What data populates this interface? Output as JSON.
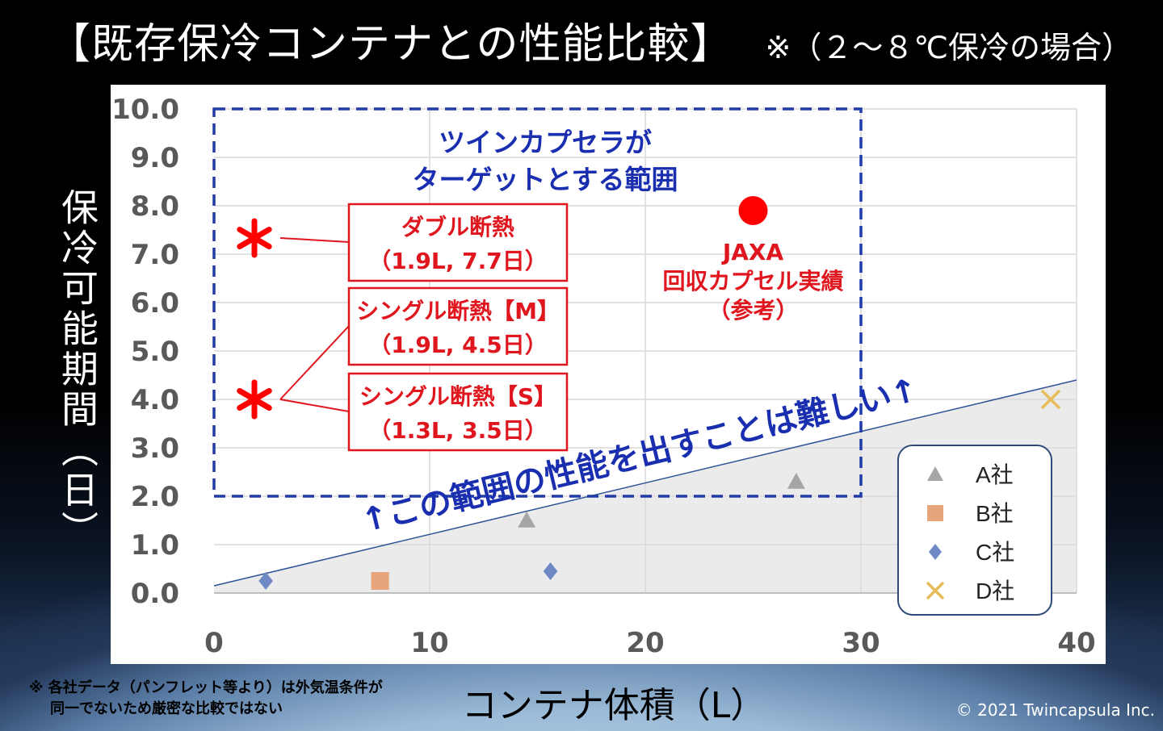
{
  "title": {
    "main": "【既存保冷コンテナとの性能比較】",
    "sub": "※（２～８℃保冷の場合）"
  },
  "ylabel": "保冷可能期間（日）",
  "xlabel": "コンテナ体積（L）",
  "footnote": {
    "line1": "※ 各社データ（パンフレット等より）は外気温条件が",
    "line2": "同一でないため厳密な比較ではない"
  },
  "copyright": "© 2021 Twincapsula Inc.",
  "chart_data": {
    "type": "scatter",
    "xlim": [
      0,
      40
    ],
    "ylim": [
      0,
      10
    ],
    "xticks": [
      "0",
      "10",
      "20",
      "30",
      "40"
    ],
    "yticks": [
      "0.0",
      "1.0",
      "2.0",
      "3.0",
      "4.0",
      "5.0",
      "6.0",
      "7.0",
      "8.0",
      "9.0",
      "10.0"
    ],
    "grid": true,
    "legend_position": "bottom-right",
    "series": [
      {
        "name": "A社",
        "marker": "triangle",
        "color": "#a6a6a6",
        "points": [
          [
            14.5,
            1.5
          ],
          [
            27.0,
            2.3
          ]
        ]
      },
      {
        "name": "B社",
        "marker": "square",
        "color": "#e8a57c",
        "points": [
          [
            7.7,
            0.25
          ]
        ]
      },
      {
        "name": "C社",
        "marker": "diamond",
        "color": "#6f89c6",
        "points": [
          [
            2.4,
            0.25
          ],
          [
            15.6,
            0.45
          ]
        ]
      },
      {
        "name": "D社",
        "marker": "x",
        "color": "#e6bd5a",
        "points": [
          [
            38.8,
            4.0
          ]
        ]
      }
    ],
    "asterisks": [
      {
        "x": 1.9,
        "y": 7.7
      },
      {
        "x": 1.9,
        "y": 4.5
      },
      {
        "x": 1.3,
        "y": 3.5
      }
    ],
    "jaxa_point": {
      "x": 25.0,
      "y": 7.9,
      "color": "#ff0000"
    },
    "target_region": {
      "x0": 0,
      "x1": 30,
      "y0": 2.0,
      "y1": 10.0,
      "label_line1": "ツインカプセラが",
      "label_line2": "ターゲットとする範囲"
    },
    "trend_line": {
      "x0": 0,
      "y0": 0.15,
      "x1": 40,
      "y1": 4.4
    },
    "banner": "↑この範囲の性能を出すことは難しい↑",
    "boxes": [
      {
        "line1": "ダブル断熱",
        "line2": "（1.9L, 7.7日）"
      },
      {
        "line1": "シングル断熱【M】",
        "line2": "（1.9L, 4.5日）"
      },
      {
        "line1": "シングル断熱【S】",
        "line2": "（1.3L, 3.5日）"
      }
    ],
    "jaxa_label": {
      "line1": "JAXA",
      "line2": "回収カプセル実績",
      "line3": "（参考）"
    }
  }
}
